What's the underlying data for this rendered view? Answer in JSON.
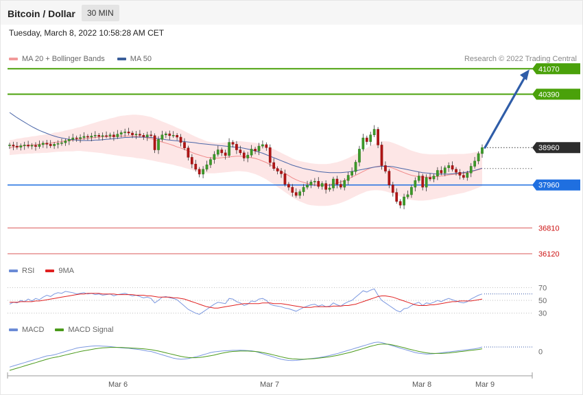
{
  "header": {
    "title": "Bitcoin / Dollar",
    "timeframe": "30 MIN",
    "datetime": "Tuesday, March 8, 2022 10:58:28 AM CET"
  },
  "credit": "Research © 2022 Trading Central",
  "legends": {
    "main": [
      {
        "label": "MA 20 + Bollinger Bands",
        "color": "#f29a9a"
      },
      {
        "label": "MA 50",
        "color": "#3a5e9a"
      }
    ],
    "rsi": [
      {
        "label": "RSI",
        "color": "#6b8bd6"
      },
      {
        "label": "9MA",
        "color": "#e02020"
      }
    ],
    "macd": [
      {
        "label": "MACD",
        "color": "#6b8bd6"
      },
      {
        "label": "MACD Signal",
        "color": "#4a9a1a"
      }
    ]
  },
  "chart_data": [
    {
      "type": "candlestick",
      "ylim": [
        35900,
        41350
      ],
      "x_ticks": [
        "Mar 6",
        "Mar 7",
        "Mar 8",
        "Mar 9"
      ],
      "current_price": {
        "value": 38960,
        "label": "38960"
      },
      "levels": [
        {
          "value": 41070,
          "label": "41070",
          "kind": "resistance",
          "color": "#4aa10a"
        },
        {
          "value": 40390,
          "label": "40390",
          "kind": "resistance",
          "color": "#4aa10a"
        },
        {
          "value": 37960,
          "label": "37960",
          "kind": "pivot",
          "color": "#1f6fe0"
        },
        {
          "value": 36810,
          "label": "36810",
          "kind": "support",
          "color": "#cc1111"
        },
        {
          "value": 36120,
          "label": "36120",
          "kind": "support",
          "color": "#cc1111"
        }
      ],
      "forecast_arrow": {
        "from": 38960,
        "to": 41070
      },
      "close": [
        39030,
        39000,
        38970,
        39010,
        39030,
        39000,
        39020,
        38990,
        39040,
        39080,
        39050,
        39010,
        39050,
        39070,
        39090,
        39140,
        39180,
        39220,
        39200,
        39230,
        39260,
        39240,
        39270,
        39290,
        39260,
        39280,
        39270,
        39300,
        39250,
        39320,
        39360,
        39380,
        39350,
        39300,
        39320,
        39290,
        39250,
        39300,
        39280,
        38900,
        39180,
        39300,
        39330,
        39280,
        39290,
        39240,
        39100,
        38950,
        38700,
        38520,
        38380,
        38250,
        38380,
        38500,
        38640,
        38780,
        38900,
        38820,
        38750,
        39100,
        39050,
        38900,
        38820,
        38680,
        38760,
        38920,
        38870,
        39000,
        39040,
        38960,
        38560,
        38400,
        38330,
        38260,
        37980,
        37900,
        37760,
        37680,
        37780,
        37900,
        37960,
        38040,
        38060,
        37920,
        38000,
        37840,
        37880,
        38120,
        37980,
        37900,
        38080,
        38220,
        38320,
        38570,
        38920,
        39220,
        39120,
        39300,
        39450,
        39030,
        38480,
        38330,
        37960,
        37760,
        37520,
        37420,
        37640,
        37700,
        37900,
        38080,
        38200,
        37900,
        38160,
        38120,
        38200,
        38350,
        38280,
        38420,
        38480,
        38380,
        38300,
        38220,
        38160,
        38280,
        38460,
        38600,
        38800,
        38960
      ],
      "ma20": [
        38960,
        38970,
        38990,
        39000,
        39010,
        39020,
        39030,
        39040,
        39050,
        39060,
        39070,
        39080,
        39100,
        39110,
        39120,
        39140,
        39150,
        39160,
        39180,
        39190,
        39200,
        39210,
        39220,
        39230,
        39240,
        39250,
        39250,
        39260,
        39260,
        39270,
        39270,
        39270,
        39270,
        39270,
        39260,
        39250,
        39240,
        39220,
        39200,
        39170,
        39140,
        39110,
        39080,
        39050,
        39020,
        38980,
        38950,
        38910,
        38870,
        38830,
        38790,
        38760,
        38730,
        38700,
        38690,
        38680,
        38680,
        38690,
        38700,
        38710,
        38720,
        38730,
        38730,
        38720,
        38710,
        38690,
        38670,
        38640,
        38600,
        38560,
        38500,
        38450,
        38390,
        38330,
        38270,
        38210,
        38150,
        38100,
        38060,
        38030,
        38000,
        37980,
        37970,
        37960,
        37960,
        37960,
        37970,
        37990,
        38010,
        38040,
        38080,
        38120,
        38170,
        38220,
        38270,
        38320,
        38370,
        38410,
        38440,
        38460,
        38470,
        38460,
        38440,
        38410,
        38370,
        38330,
        38290,
        38250,
        38220,
        38200,
        38180,
        38170,
        38170,
        38170,
        38180,
        38190,
        38200,
        38210,
        38230,
        38240,
        38250,
        38260,
        38270,
        38290,
        38310,
        38340,
        38370,
        38400
      ],
      "ma50": [
        39900,
        39830,
        39760,
        39700,
        39640,
        39580,
        39520,
        39470,
        39420,
        39380,
        39340,
        39300,
        39270,
        39240,
        39220,
        39200,
        39180,
        39170,
        39160,
        39150,
        39150,
        39150,
        39150,
        39160,
        39160,
        39170,
        39180,
        39190,
        39200,
        39210,
        39220,
        39230,
        39230,
        39240,
        39240,
        39240,
        39240,
        39240,
        39230,
        39220,
        39200,
        39190,
        39170,
        39160,
        39150,
        39140,
        39130,
        39120,
        39110,
        39100,
        39090,
        39070,
        39060,
        39050,
        39040,
        39030,
        39020,
        39010,
        39000,
        38990,
        38980,
        38970,
        38960,
        38940,
        38920,
        38900,
        38870,
        38840,
        38810,
        38770,
        38730,
        38690,
        38650,
        38610,
        38570,
        38530,
        38490,
        38460,
        38430,
        38400,
        38380,
        38360,
        38340,
        38320,
        38310,
        38300,
        38290,
        38290,
        38290,
        38290,
        38300,
        38310,
        38320,
        38340,
        38360,
        38380,
        38400,
        38420,
        38440,
        38450,
        38460,
        38460,
        38460,
        38450,
        38430,
        38410,
        38390,
        38370,
        38350,
        38330,
        38310,
        38290,
        38280,
        38270,
        38260,
        38250,
        38250,
        38250,
        38250,
        38260,
        38270,
        38280,
        38290,
        38310,
        38330,
        38350,
        38380,
        38410
      ],
      "bb_width": [
        200,
        200,
        210,
        210,
        220,
        220,
        230,
        230,
        240,
        240,
        250,
        250,
        260,
        260,
        270,
        280,
        290,
        300,
        310,
        320,
        340,
        360,
        380,
        400,
        420,
        440,
        460,
        480,
        500,
        520,
        540,
        550,
        560,
        570,
        580,
        580,
        580,
        580,
        580,
        570,
        560,
        550,
        540,
        530,
        520,
        510,
        500,
        490,
        480,
        470,
        460,
        450,
        440,
        430,
        420,
        410,
        400,
        400,
        400,
        400,
        400,
        400,
        400,
        400,
        400,
        410,
        420,
        430,
        440,
        450,
        460,
        470,
        480,
        490,
        500,
        510,
        520,
        530,
        540,
        550,
        560,
        560,
        560,
        560,
        560,
        560,
        560,
        560,
        560,
        560,
        560,
        560,
        560,
        560,
        560,
        570,
        580,
        600,
        620,
        640,
        660,
        670,
        680,
        680,
        680,
        680,
        680,
        670,
        660,
        650,
        640,
        630,
        620,
        610,
        600,
        590,
        580,
        570,
        560,
        550,
        540,
        530,
        520,
        510,
        500,
        490,
        480,
        470
      ]
    },
    {
      "type": "line",
      "name": "RSI",
      "ylim": [
        20,
        80
      ],
      "y_ticks": [
        30,
        50,
        70
      ],
      "rsi": [
        44,
        47,
        46,
        50,
        48,
        52,
        49,
        53,
        51,
        55,
        58,
        56,
        60,
        62,
        61,
        64,
        63,
        62,
        60,
        61,
        62,
        60,
        61,
        59,
        60,
        58,
        59,
        60,
        57,
        59,
        60,
        61,
        59,
        57,
        58,
        56,
        54,
        55,
        53,
        46,
        50,
        55,
        56,
        54,
        53,
        51,
        46,
        41,
        36,
        33,
        30,
        28,
        32,
        36,
        40,
        44,
        47,
        46,
        45,
        53,
        52,
        48,
        46,
        42,
        44,
        49,
        48,
        52,
        53,
        50,
        44,
        42,
        41,
        40,
        38,
        37,
        35,
        33,
        36,
        39,
        41,
        43,
        44,
        41,
        43,
        40,
        41,
        46,
        43,
        41,
        45,
        48,
        50,
        55,
        60,
        65,
        63,
        66,
        68,
        58,
        50,
        46,
        42,
        38,
        34,
        32,
        37,
        38,
        42,
        45,
        47,
        42,
        46,
        45,
        47,
        50,
        48,
        51,
        53,
        51,
        49,
        47,
        46,
        48,
        52,
        55,
        58,
        60
      ],
      "ma9": [
        47,
        47,
        47,
        48,
        48,
        48,
        48,
        49,
        49,
        50,
        51,
        52,
        53,
        54,
        55,
        56,
        57,
        58,
        59,
        60,
        60,
        61,
        61,
        61,
        61,
        60,
        60,
        60,
        60,
        59,
        59,
        59,
        59,
        59,
        58,
        58,
        58,
        57,
        57,
        56,
        55,
        55,
        55,
        55,
        54,
        54,
        53,
        52,
        50,
        48,
        46,
        44,
        42,
        40,
        39,
        38,
        38,
        39,
        40,
        41,
        42,
        43,
        44,
        45,
        45,
        45,
        45,
        45,
        46,
        46,
        46,
        45,
        45,
        45,
        44,
        43,
        42,
        41,
        40,
        39,
        39,
        39,
        40,
        40,
        40,
        40,
        40,
        41,
        41,
        41,
        42,
        42,
        43,
        44,
        46,
        48,
        50,
        52,
        54,
        56,
        57,
        57,
        56,
        55,
        53,
        51,
        49,
        47,
        45,
        43,
        42,
        42,
        42,
        43,
        43,
        44,
        45,
        46,
        47,
        48,
        48,
        49,
        49,
        49,
        49,
        50,
        51,
        52
      ]
    },
    {
      "type": "line",
      "name": "MACD",
      "ylim": [
        -1,
        1
      ],
      "y_ticks": [
        0
      ],
      "macd": [
        -0.7,
        -0.65,
        -0.6,
        -0.55,
        -0.5,
        -0.45,
        -0.4,
        -0.35,
        -0.3,
        -0.25,
        -0.2,
        -0.18,
        -0.15,
        -0.1,
        -0.05,
        0,
        0.05,
        0.1,
        0.15,
        0.18,
        0.2,
        0.22,
        0.24,
        0.25,
        0.25,
        0.24,
        0.23,
        0.22,
        0.2,
        0.18,
        0.16,
        0.15,
        0.14,
        0.12,
        0.1,
        0.08,
        0.05,
        0.02,
        0,
        -0.05,
        -0.1,
        -0.15,
        -0.2,
        -0.25,
        -0.3,
        -0.33,
        -0.35,
        -0.34,
        -0.32,
        -0.28,
        -0.24,
        -0.2,
        -0.15,
        -0.1,
        -0.05,
        -0.02,
        0,
        0.02,
        0.03,
        0.04,
        0.05,
        0.05,
        0.06,
        0.05,
        0.04,
        0.03,
        0,
        -0.05,
        -0.1,
        -0.15,
        -0.2,
        -0.25,
        -0.3,
        -0.35,
        -0.38,
        -0.4,
        -0.41,
        -0.4,
        -0.38,
        -0.36,
        -0.34,
        -0.32,
        -0.3,
        -0.28,
        -0.25,
        -0.22,
        -0.18,
        -0.14,
        -0.1,
        -0.05,
        0,
        0.05,
        0.1,
        0.15,
        0.2,
        0.25,
        0.3,
        0.35,
        0.4,
        0.42,
        0.4,
        0.35,
        0.3,
        0.25,
        0.2,
        0.15,
        0.1,
        0.05,
        0,
        -0.05,
        -0.08,
        -0.1,
        -0.12,
        -0.11,
        -0.1,
        -0.08,
        -0.06,
        -0.04,
        -0.02,
        0,
        0.02,
        0.04,
        0.06,
        0.08,
        0.1,
        0.12,
        0.15,
        0.2
      ],
      "signal": [
        -0.85,
        -0.8,
        -0.75,
        -0.7,
        -0.65,
        -0.6,
        -0.55,
        -0.5,
        -0.45,
        -0.4,
        -0.35,
        -0.3,
        -0.27,
        -0.24,
        -0.2,
        -0.16,
        -0.12,
        -0.08,
        -0.04,
        0,
        0.03,
        0.06,
        0.09,
        0.12,
        0.14,
        0.16,
        0.17,
        0.18,
        0.18,
        0.18,
        0.18,
        0.17,
        0.16,
        0.15,
        0.14,
        0.13,
        0.12,
        0.1,
        0.08,
        0.05,
        0.02,
        -0.02,
        -0.06,
        -0.1,
        -0.14,
        -0.18,
        -0.22,
        -0.25,
        -0.27,
        -0.28,
        -0.28,
        -0.27,
        -0.25,
        -0.22,
        -0.19,
        -0.16,
        -0.12,
        -0.08,
        -0.05,
        -0.02,
        0,
        0.01,
        0.02,
        0.02,
        0.02,
        0.01,
        0,
        -0.02,
        -0.05,
        -0.08,
        -0.12,
        -0.16,
        -0.2,
        -0.24,
        -0.28,
        -0.31,
        -0.33,
        -0.34,
        -0.35,
        -0.35,
        -0.34,
        -0.33,
        -0.32,
        -0.3,
        -0.28,
        -0.26,
        -0.24,
        -0.21,
        -0.18,
        -0.14,
        -0.1,
        -0.06,
        -0.02,
        0.03,
        0.08,
        0.13,
        0.18,
        0.23,
        0.27,
        0.31,
        0.33,
        0.33,
        0.32,
        0.29,
        0.25,
        0.21,
        0.17,
        0.12,
        0.08,
        0.04,
        0,
        -0.03,
        -0.06,
        -0.08,
        -0.09,
        -0.09,
        -0.09,
        -0.08,
        -0.07,
        -0.05,
        -0.03,
        -0.01,
        0.01,
        0.03,
        0.05,
        0.07,
        0.09,
        0.12
      ]
    }
  ]
}
